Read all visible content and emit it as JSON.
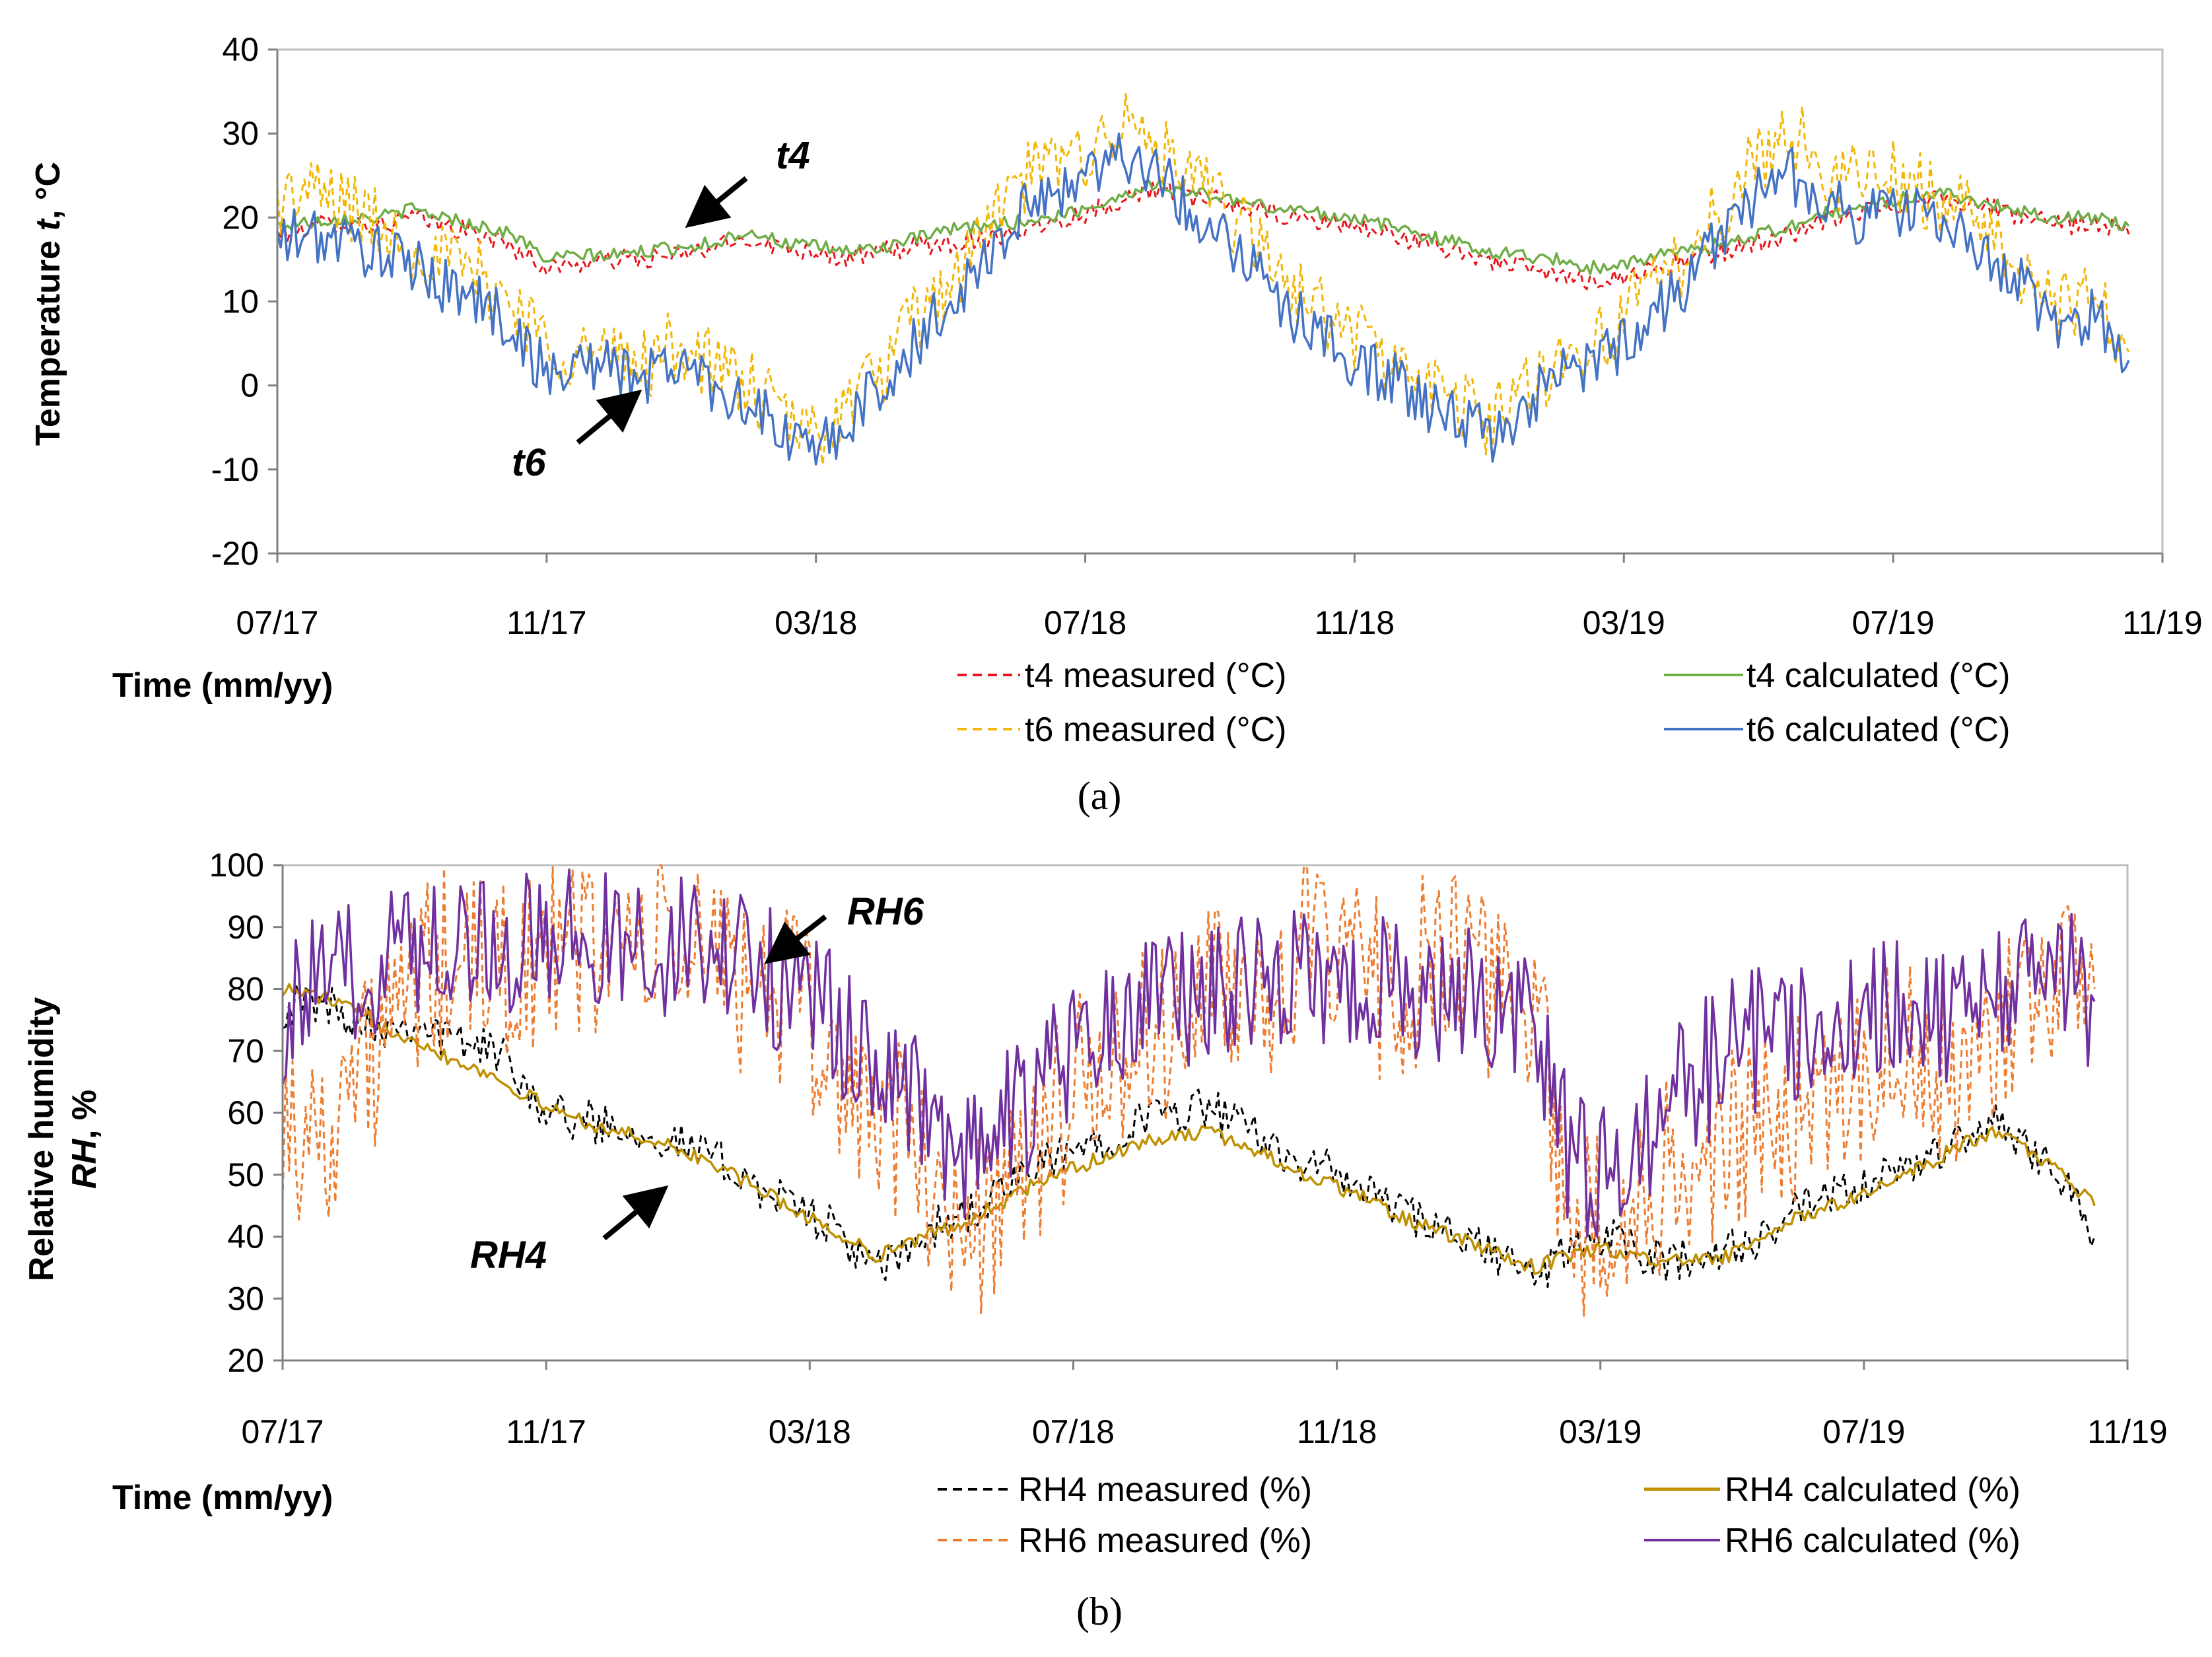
{
  "chart_data": [
    {
      "id": "a",
      "type": "line",
      "caption": "(a)",
      "ylabel_pre": "Temperature ",
      "ylabel_var": "t",
      "ylabel_post": ", °C",
      "xlabel": "Time (mm/yy)",
      "ylim": [
        -20,
        40
      ],
      "yticks": [
        -20,
        -10,
        0,
        10,
        20,
        30,
        40
      ],
      "ytick_labels": [
        "-20",
        "-10",
        "0",
        "10",
        "20",
        "30",
        "40"
      ],
      "xlim": [
        0,
        28
      ],
      "xticks": [
        0,
        4,
        8,
        12,
        16,
        20,
        24,
        28
      ],
      "xtick_labels": [
        "07/17",
        "11/17",
        "03/18",
        "07/18",
        "11/18",
        "03/19",
        "07/19",
        "11/19"
      ],
      "x_unit": "months since 07/17",
      "annotations": [
        "t4",
        "t6"
      ],
      "series": [
        {
          "name": "t4 measured (°C)",
          "color": "#e8161c",
          "dash": "dashed",
          "x": [
            0,
            0.5,
            1,
            1.5,
            2,
            2.5,
            3,
            3.5,
            4,
            4.5,
            5,
            5.5,
            6,
            6.5,
            7,
            7.5,
            8,
            8.5,
            9,
            9.5,
            10,
            10.5,
            11,
            11.5,
            12,
            12.5,
            13,
            13.5,
            14,
            14.5,
            15,
            15.5,
            16,
            16.5,
            17,
            17.5,
            18,
            18.5,
            19,
            19.5,
            20,
            20.5,
            21,
            21.5,
            22,
            22.5,
            23,
            23.5,
            24,
            24.5,
            25,
            25.5,
            26,
            26.5,
            27,
            27.5
          ],
          "y": [
            18,
            19,
            19.5,
            19,
            20,
            19,
            18,
            16.5,
            14,
            14.5,
            15,
            15,
            15.5,
            16.5,
            17.5,
            16.5,
            16,
            15,
            16,
            16.5,
            17,
            17.5,
            18.5,
            19.5,
            20.5,
            22,
            23.5,
            22.5,
            22,
            21,
            20,
            19.5,
            19,
            18,
            17,
            16,
            15,
            14,
            13,
            12.5,
            13,
            14,
            15,
            16,
            17,
            18,
            19.5,
            20.5,
            21.5,
            22.5,
            22,
            21,
            20,
            19,
            19.5,
            18
          ]
        },
        {
          "name": "t4 calculated (°C)",
          "color": "#70ad47",
          "dash": "solid",
          "x": [
            0,
            0.5,
            1,
            1.5,
            2,
            2.5,
            3,
            3.5,
            4,
            4.5,
            5,
            5.5,
            6,
            6.5,
            7,
            7.5,
            8,
            8.5,
            9,
            9.5,
            10,
            10.5,
            11,
            11.5,
            12,
            12.5,
            13,
            13.5,
            14,
            14.5,
            15,
            15.5,
            16,
            16.5,
            17,
            17.5,
            18,
            18.5,
            19,
            19.5,
            20,
            20.5,
            21,
            21.5,
            22,
            22.5,
            23,
            23.5,
            24,
            24.5,
            25,
            25.5,
            26,
            26.5,
            27,
            27.5
          ],
          "y": [
            19,
            19.5,
            20,
            20,
            21,
            20,
            19,
            18,
            15,
            15.5,
            15.5,
            16,
            16.5,
            17,
            18.5,
            17,
            16.5,
            16,
            16.5,
            17.5,
            18.5,
            19,
            19.5,
            20,
            21,
            22.5,
            24,
            23,
            22.5,
            21.5,
            21,
            20.5,
            20,
            19,
            18,
            17,
            16,
            15.5,
            15,
            14,
            14.5,
            15.5,
            16,
            17,
            18,
            19,
            20.5,
            21,
            22,
            23,
            22.5,
            21.5,
            20.5,
            20,
            20,
            19
          ]
        },
        {
          "name": "t6 measured (°C)",
          "color": "#f2b705",
          "dash": "dashed",
          "x": [
            0,
            0.5,
            1,
            1.5,
            2,
            2.5,
            3,
            3.5,
            4,
            4.5,
            5,
            5.5,
            6,
            6.5,
            7,
            7.5,
            8,
            8.5,
            9,
            9.5,
            10,
            10.5,
            11,
            11.5,
            12,
            12.5,
            13,
            13.5,
            14,
            14.5,
            15,
            15.5,
            16,
            16.5,
            17,
            17.5,
            18,
            18.5,
            19,
            19.5,
            20,
            20.5,
            21,
            21.5,
            22,
            22.5,
            23,
            23.5,
            24,
            24.5,
            25,
            25.5,
            26,
            26.5,
            27,
            27.5
          ],
          "y": [
            22,
            23,
            22,
            19,
            17,
            15,
            13,
            10,
            5,
            4,
            3,
            3,
            5,
            2,
            0,
            -4,
            -6,
            -2,
            2,
            8,
            12,
            18,
            24,
            26,
            28,
            31,
            29,
            24,
            22,
            17,
            12,
            9,
            6,
            3,
            0,
            -2,
            -4,
            -1,
            3,
            5,
            8,
            12,
            16,
            22,
            27,
            30,
            26,
            24,
            25,
            23,
            21,
            18,
            13,
            9,
            10,
            4
          ]
        },
        {
          "name": "t6 calculated (°C)",
          "color": "#4472c4",
          "dash": "solid",
          "x": [
            0,
            0.5,
            1,
            1.5,
            2,
            2.5,
            3,
            3.5,
            4,
            4.5,
            5,
            5.5,
            6,
            6.5,
            7,
            7.5,
            8,
            8.5,
            9,
            9.5,
            10,
            10.5,
            11,
            11.5,
            12,
            12.5,
            13,
            13.5,
            14,
            14.5,
            15,
            15.5,
            16,
            16.5,
            17,
            17.5,
            18,
            18.5,
            19,
            19.5,
            20,
            20.5,
            21,
            21.5,
            22,
            22.5,
            23,
            23.5,
            24,
            24.5,
            25,
            25.5,
            26,
            26.5,
            27,
            27.5
          ],
          "y": [
            17,
            18,
            17,
            16,
            14,
            12,
            10,
            7,
            1,
            3,
            2,
            1,
            3,
            0,
            -2,
            -6,
            -8,
            -4,
            0,
            5,
            10,
            15,
            20,
            23,
            25,
            28,
            26,
            21,
            19,
            14,
            9,
            6,
            3,
            1,
            -2,
            -4,
            -6,
            -3,
            1,
            3,
            5,
            9,
            13,
            19,
            23,
            25,
            22,
            20,
            21,
            20,
            18,
            15,
            11,
            7,
            8,
            3
          ]
        }
      ]
    },
    {
      "id": "b",
      "type": "line",
      "caption": "(b)",
      "ylabel_line1": "Relative humidity",
      "ylabel_var": "RH",
      "ylabel_post": ", %",
      "xlabel": "Time (mm/yy)",
      "ylim": [
        20,
        100
      ],
      "yticks": [
        20,
        30,
        40,
        50,
        60,
        70,
        80,
        90,
        100
      ],
      "ytick_labels": [
        "20",
        "30",
        "40",
        "50",
        "60",
        "70",
        "80",
        "90",
        "100"
      ],
      "xlim": [
        0,
        28
      ],
      "xticks": [
        0,
        4,
        8,
        12,
        16,
        20,
        24,
        28
      ],
      "xtick_labels": [
        "07/17",
        "11/17",
        "03/18",
        "07/18",
        "11/18",
        "03/19",
        "07/19",
        "11/19"
      ],
      "x_unit": "months since 07/17",
      "annotations": [
        "RH6",
        "RH4"
      ],
      "series": [
        {
          "name": "RH4 measured (%)",
          "color": "#000000",
          "dash": "dashed",
          "x": [
            0,
            0.5,
            1,
            1.5,
            2,
            2.5,
            3,
            3.5,
            4,
            4.5,
            5,
            5.5,
            6,
            6.5,
            7,
            7.5,
            8,
            8.5,
            9,
            9.5,
            10,
            10.5,
            11,
            11.5,
            12,
            12.5,
            13,
            13.5,
            14,
            14.5,
            15,
            15.5,
            16,
            16.5,
            17,
            17.5,
            18,
            18.5,
            19,
            19.5,
            20,
            20.5,
            21,
            21.5,
            22,
            22.5,
            23,
            23.5,
            24,
            24.5,
            25,
            25.5,
            26,
            26.5,
            27,
            27.5
          ],
          "y": [
            77,
            78,
            76,
            74,
            75,
            72,
            71,
            68,
            60,
            59,
            58,
            57,
            55,
            53,
            50,
            46,
            44,
            40,
            34,
            38,
            42,
            44,
            48,
            51,
            54,
            56,
            59,
            60,
            61,
            58,
            55,
            52,
            50,
            47,
            44,
            41,
            39,
            37,
            33,
            38,
            40,
            38,
            36,
            37,
            38,
            40,
            44,
            46,
            48,
            50,
            53,
            56,
            58,
            55,
            50,
            40
          ]
        },
        {
          "name": "RH4 calculated (%)",
          "color": "#bf9000",
          "dash": "solid",
          "x": [
            0,
            0.5,
            1,
            1.5,
            2,
            2.5,
            3,
            3.5,
            4,
            4.5,
            5,
            5.5,
            6,
            6.5,
            7,
            7.5,
            8,
            8.5,
            9,
            9.5,
            10,
            10.5,
            11,
            11.5,
            12,
            12.5,
            13,
            13.5,
            14,
            14.5,
            15,
            15.5,
            16,
            16.5,
            17,
            17.5,
            18,
            18.5,
            19,
            19.5,
            20,
            20.5,
            21,
            21.5,
            22,
            22.5,
            23,
            23.5,
            24,
            24.5,
            25,
            25.5,
            26,
            26.5,
            27,
            27.5
          ],
          "y": [
            80,
            79,
            77,
            74,
            72,
            69,
            67,
            64,
            61,
            59,
            57,
            56,
            54,
            52,
            49,
            46,
            43,
            40,
            37,
            39,
            41,
            43,
            46,
            49,
            51,
            53,
            55,
            56,
            57,
            55,
            53,
            50,
            48,
            46,
            43,
            41,
            39,
            37,
            35,
            37,
            38,
            37,
            36,
            36,
            37,
            40,
            43,
            45,
            47,
            49,
            52,
            55,
            57,
            54,
            50,
            45
          ]
        },
        {
          "name": "RH6 measured (%)",
          "color": "#ed7d31",
          "dash": "dashed",
          "x": [
            0,
            0.5,
            1,
            1.5,
            2,
            2.5,
            3,
            3.5,
            4,
            4.5,
            5,
            5.5,
            6,
            6.5,
            7,
            7.5,
            8,
            8.5,
            9,
            9.5,
            10,
            10.5,
            11,
            11.5,
            12,
            12.5,
            13,
            13.5,
            14,
            14.5,
            15,
            15.5,
            16,
            16.5,
            17,
            17.5,
            18,
            18.5,
            19,
            19.5,
            20,
            20.5,
            21,
            21.5,
            22,
            22.5,
            23,
            23.5,
            24,
            24.5,
            25,
            25.5,
            26,
            26.5,
            27,
            27.5
          ],
          "y": [
            60,
            55,
            65,
            70,
            80,
            84,
            82,
            85,
            83,
            87,
            88,
            86,
            87,
            85,
            82,
            80,
            74,
            65,
            60,
            55,
            45,
            42,
            48,
            55,
            62,
            68,
            70,
            74,
            78,
            80,
            82,
            84,
            83,
            82,
            80,
            84,
            82,
            80,
            76,
            45,
            40,
            44,
            50,
            52,
            55,
            58,
            62,
            66,
            68,
            70,
            66,
            64,
            70,
            78,
            82,
            80
          ]
        },
        {
          "name": "RH6 calculated (%)",
          "color": "#7030a0",
          "dash": "solid",
          "x": [
            0,
            0.5,
            1,
            1.5,
            2,
            2.5,
            3,
            3.5,
            4,
            4.5,
            5,
            5.5,
            6,
            6.5,
            7,
            7.5,
            8,
            8.5,
            9,
            9.5,
            10,
            10.5,
            11,
            11.5,
            12,
            12.5,
            13,
            13.5,
            14,
            14.5,
            15,
            15.5,
            16,
            16.5,
            17,
            17.5,
            18,
            18.5,
            19,
            19.5,
            20,
            20.5,
            21,
            21.5,
            22,
            22.5,
            23,
            23.5,
            24,
            24.5,
            25,
            25.5,
            26,
            26.5,
            27,
            27.5
          ],
          "y": [
            75,
            80,
            82,
            85,
            88,
            89,
            87,
            88,
            86,
            89,
            88,
            87,
            87,
            86,
            84,
            82,
            78,
            72,
            68,
            65,
            55,
            52,
            58,
            64,
            70,
            74,
            76,
            78,
            80,
            81,
            82,
            83,
            82,
            81,
            80,
            80,
            79,
            78,
            75,
            55,
            50,
            55,
            62,
            66,
            70,
            72,
            74,
            76,
            78,
            79,
            76,
            74,
            78,
            82,
            85,
            78
          ]
        }
      ]
    }
  ]
}
